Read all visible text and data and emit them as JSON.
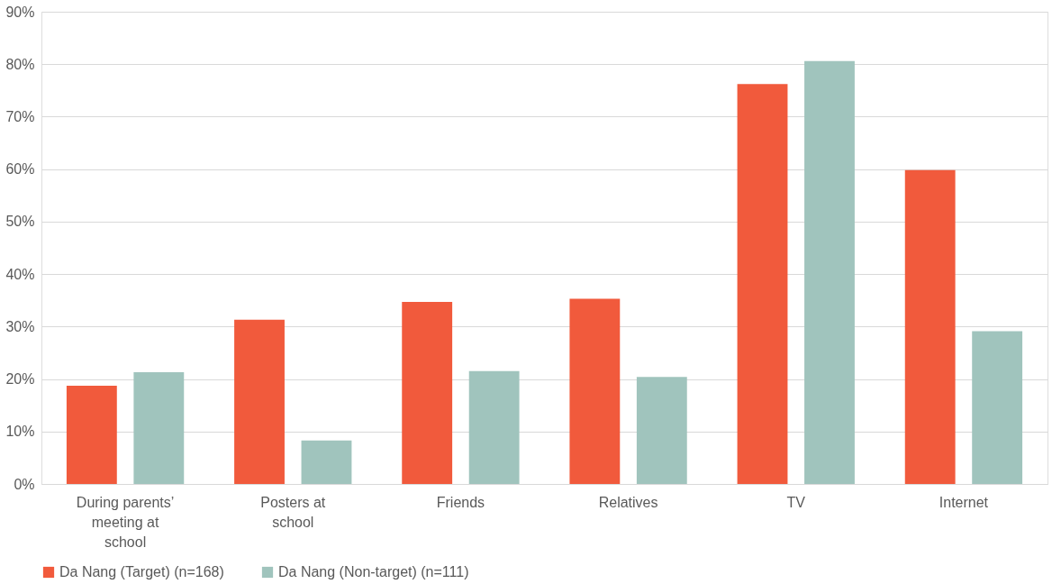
{
  "chart_data": {
    "type": "bar",
    "categories": [
      "During parents’ meeting at school",
      "Posters at school",
      "Friends",
      "Relatives",
      "TV",
      "Internet"
    ],
    "series": [
      {
        "name": "Da Nang (Target) (n=168)",
        "color": "#f15a3c",
        "values": [
          18.7,
          31.3,
          34.7,
          35.3,
          76.2,
          59.8
        ]
      },
      {
        "name": "Da Nang (Non-target) (n=111)",
        "color": "#a0c4bd",
        "values": [
          21.3,
          8.3,
          21.5,
          20.4,
          80.6,
          29.1
        ]
      }
    ],
    "ylim": [
      0,
      90
    ],
    "yticks": [
      {
        "value": 0,
        "label": "0%"
      },
      {
        "value": 10,
        "label": "10%"
      },
      {
        "value": 20,
        "label": "20%"
      },
      {
        "value": 30,
        "label": "30%"
      },
      {
        "value": 40,
        "label": "40%"
      },
      {
        "value": 50,
        "label": "50%"
      },
      {
        "value": 60,
        "label": "60%"
      },
      {
        "value": 70,
        "label": "70%"
      },
      {
        "value": 80,
        "label": "80%"
      },
      {
        "value": 90,
        "label": "90%"
      }
    ],
    "grid": "y",
    "legend": "bottom"
  }
}
